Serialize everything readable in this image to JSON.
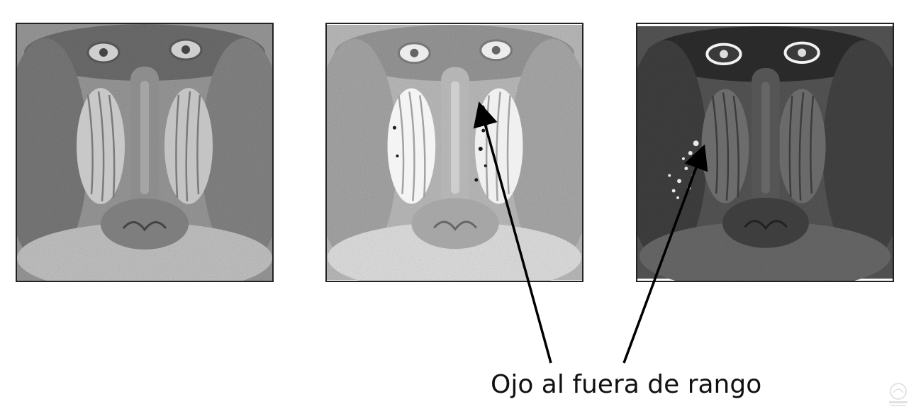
{
  "figure": {
    "panels": [
      {
        "subject": "mandrill face",
        "variant": "original"
      },
      {
        "subject": "mandrill face",
        "variant": "brightened with saturated pixels"
      },
      {
        "subject": "mandrill face",
        "variant": "darkened with overflow artifacts"
      }
    ],
    "caption": "Ojo al fuera de rango",
    "colors": {
      "background": "#ffffff",
      "arrow": "#000000",
      "panel_border": "#222222"
    }
  }
}
